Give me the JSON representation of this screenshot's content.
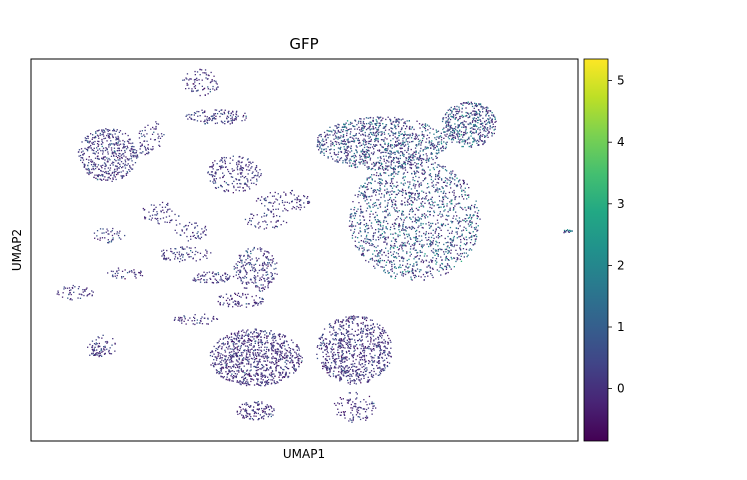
{
  "chart_data": {
    "type": "scatter",
    "title": "GFP",
    "xlabel": "UMAP1",
    "ylabel": "UMAP2",
    "x_ticks_shown": false,
    "y_ticks_shown": false,
    "grid": false,
    "colorbar": {
      "colormap": "viridis",
      "range": [
        -0.85,
        5.35
      ],
      "ticks": [
        0,
        1,
        2,
        3,
        4,
        5
      ],
      "tick_labels": [
        "0",
        "1",
        "2",
        "3",
        "4",
        "5"
      ]
    },
    "clusters": [
      {
        "cx": 0.41,
        "cy": 0.78,
        "rx": 0.085,
        "ry": 0.075,
        "n": 900,
        "expr": 0.2
      },
      {
        "cx": 0.59,
        "cy": 0.76,
        "rx": 0.07,
        "ry": 0.09,
        "n": 750,
        "expr": 0.25
      },
      {
        "cx": 0.7,
        "cy": 0.42,
        "rx": 0.12,
        "ry": 0.16,
        "n": 1500,
        "expr": 1.6
      },
      {
        "cx": 0.64,
        "cy": 0.22,
        "rx": 0.12,
        "ry": 0.07,
        "n": 1000,
        "expr": 1.4
      },
      {
        "cx": 0.8,
        "cy": 0.17,
        "rx": 0.05,
        "ry": 0.06,
        "n": 450,
        "expr": 1.5
      },
      {
        "cx": 0.14,
        "cy": 0.25,
        "rx": 0.055,
        "ry": 0.07,
        "n": 450,
        "expr": 0.4
      },
      {
        "cx": 0.41,
        "cy": 0.55,
        "rx": 0.04,
        "ry": 0.06,
        "n": 220,
        "expr": 0.5
      },
      {
        "cx": 0.37,
        "cy": 0.3,
        "rx": 0.05,
        "ry": 0.05,
        "n": 200,
        "expr": 0.3
      },
      {
        "cx": 0.34,
        "cy": 0.15,
        "rx": 0.06,
        "ry": 0.02,
        "n": 120,
        "expr": 0.4
      },
      {
        "cx": 0.41,
        "cy": 0.92,
        "rx": 0.035,
        "ry": 0.025,
        "n": 110,
        "expr": 0.1
      },
      {
        "cx": 0.59,
        "cy": 0.91,
        "rx": 0.04,
        "ry": 0.04,
        "n": 100,
        "expr": 0.1
      },
      {
        "cx": 0.31,
        "cy": 0.06,
        "rx": 0.035,
        "ry": 0.035,
        "n": 80,
        "expr": 0.3
      },
      {
        "cx": 0.38,
        "cy": 0.63,
        "rx": 0.045,
        "ry": 0.02,
        "n": 80,
        "expr": 0.3
      },
      {
        "cx": 0.33,
        "cy": 0.57,
        "rx": 0.04,
        "ry": 0.015,
        "n": 70,
        "expr": 0.3
      },
      {
        "cx": 0.28,
        "cy": 0.51,
        "rx": 0.05,
        "ry": 0.02,
        "n": 80,
        "expr": 0.3
      },
      {
        "cx": 0.24,
        "cy": 0.4,
        "rx": 0.04,
        "ry": 0.03,
        "n": 60,
        "expr": 0.3
      },
      {
        "cx": 0.22,
        "cy": 0.2,
        "rx": 0.025,
        "ry": 0.04,
        "n": 50,
        "expr": 0.3
      },
      {
        "cx": 0.46,
        "cy": 0.37,
        "rx": 0.05,
        "ry": 0.03,
        "n": 90,
        "expr": 0.4
      },
      {
        "cx": 0.13,
        "cy": 0.75,
        "rx": 0.025,
        "ry": 0.03,
        "n": 50,
        "expr": 0.3
      },
      {
        "cx": 0.08,
        "cy": 0.61,
        "rx": 0.035,
        "ry": 0.02,
        "n": 50,
        "expr": 0.3
      },
      {
        "cx": 0.17,
        "cy": 0.56,
        "rx": 0.035,
        "ry": 0.015,
        "n": 40,
        "expr": 0.3
      },
      {
        "cx": 0.14,
        "cy": 0.46,
        "rx": 0.03,
        "ry": 0.02,
        "n": 40,
        "expr": 0.3
      },
      {
        "cx": 0.3,
        "cy": 0.68,
        "rx": 0.04,
        "ry": 0.015,
        "n": 50,
        "expr": 0.3
      },
      {
        "cx": 0.29,
        "cy": 0.45,
        "rx": 0.035,
        "ry": 0.025,
        "n": 50,
        "expr": 0.3
      },
      {
        "cx": 0.43,
        "cy": 0.42,
        "rx": 0.04,
        "ry": 0.025,
        "n": 50,
        "expr": 0.4
      },
      {
        "cx": 0.12,
        "cy": 0.76,
        "rx": 0.02,
        "ry": 0.02,
        "n": 30,
        "expr": 0.3
      },
      {
        "cx": 0.98,
        "cy": 0.45,
        "rx": 0.01,
        "ry": 0.005,
        "n": 15,
        "expr": 2.0
      },
      {
        "cx": 0.2,
        "cy": 0.24,
        "rx": 0.015,
        "ry": 0.015,
        "n": 20,
        "expr": 0.3
      }
    ]
  }
}
